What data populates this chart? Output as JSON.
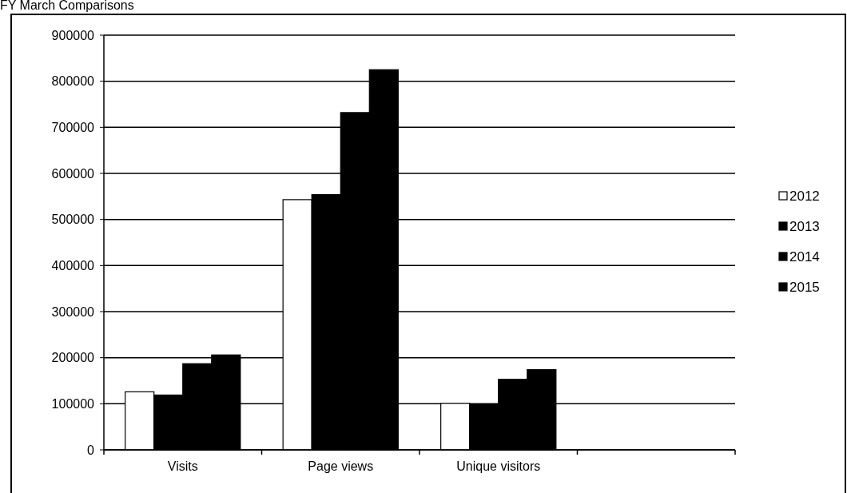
{
  "chart_data": {
    "type": "bar",
    "title": "FY March Comparisons",
    "categories": [
      "Visits",
      "Page views",
      "Unique visitors",
      null
    ],
    "series": [
      {
        "name": "2012",
        "color": "#ffffff",
        "values": [
          126000,
          543000,
          101000,
          null
        ]
      },
      {
        "name": "2013",
        "color": "#000000",
        "values": [
          119000,
          554000,
          98000,
          null
        ]
      },
      {
        "name": "2014",
        "color": "#000000",
        "values": [
          187000,
          732000,
          153000,
          null
        ]
      },
      {
        "name": "2015",
        "color": "#000000",
        "values": [
          206000,
          825000,
          174000,
          null
        ]
      }
    ],
    "ylim": [
      0,
      900000
    ],
    "yticks": [
      0,
      100000,
      200000,
      300000,
      400000,
      500000,
      600000,
      700000,
      800000,
      900000
    ],
    "grid": "y",
    "legend": "right"
  }
}
